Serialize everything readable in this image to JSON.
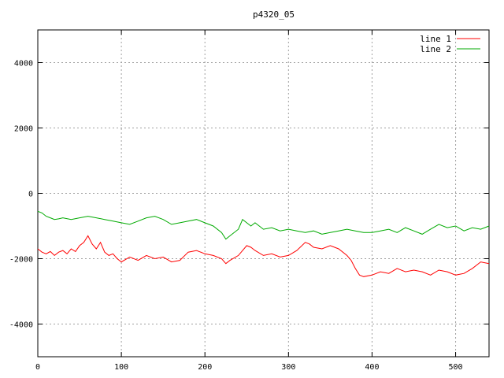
{
  "chart_data": {
    "type": "line",
    "title": "p4320_05",
    "xlabel": "",
    "ylabel": "",
    "xlim": [
      0,
      540
    ],
    "ylim": [
      -5000,
      5000
    ],
    "x_ticks": [
      0,
      100,
      200,
      300,
      400,
      500
    ],
    "y_ticks": [
      -4000,
      -2000,
      0,
      2000,
      4000
    ],
    "grid": true,
    "legend_position": "top-right",
    "series": [
      {
        "name": "line 1",
        "color": "#ff0000",
        "x": [
          0,
          5,
          10,
          15,
          20,
          25,
          30,
          35,
          40,
          45,
          50,
          55,
          60,
          65,
          70,
          75,
          80,
          85,
          90,
          95,
          100,
          110,
          120,
          130,
          140,
          150,
          160,
          170,
          180,
          190,
          200,
          210,
          220,
          225,
          230,
          240,
          250,
          255,
          260,
          270,
          280,
          290,
          300,
          310,
          320,
          325,
          330,
          340,
          350,
          360,
          370,
          375,
          380,
          385,
          390,
          400,
          410,
          420,
          430,
          440,
          450,
          460,
          470,
          480,
          490,
          500,
          510,
          520,
          530,
          540
        ],
        "y": [
          -1700,
          -1800,
          -1850,
          -1780,
          -1900,
          -1800,
          -1750,
          -1850,
          -1700,
          -1780,
          -1600,
          -1500,
          -1300,
          -1550,
          -1700,
          -1500,
          -1800,
          -1900,
          -1850,
          -2000,
          -2100,
          -1950,
          -2050,
          -1900,
          -2000,
          -1950,
          -2100,
          -2050,
          -1800,
          -1750,
          -1850,
          -1900,
          -2000,
          -2150,
          -2050,
          -1900,
          -1600,
          -1650,
          -1750,
          -1900,
          -1850,
          -1950,
          -1900,
          -1750,
          -1500,
          -1550,
          -1650,
          -1700,
          -1600,
          -1700,
          -1900,
          -2050,
          -2300,
          -2500,
          -2550,
          -2500,
          -2400,
          -2450,
          -2300,
          -2400,
          -2350,
          -2400,
          -2500,
          -2350,
          -2400,
          -2500,
          -2450,
          -2300,
          -2100,
          -2150
        ]
      },
      {
        "name": "line 2",
        "color": "#00aa00",
        "x": [
          0,
          5,
          10,
          15,
          20,
          25,
          30,
          40,
          50,
          60,
          70,
          80,
          90,
          100,
          110,
          120,
          130,
          140,
          150,
          160,
          170,
          180,
          190,
          200,
          210,
          220,
          225,
          230,
          240,
          245,
          250,
          255,
          260,
          270,
          280,
          290,
          300,
          310,
          320,
          330,
          340,
          350,
          360,
          370,
          380,
          390,
          400,
          410,
          420,
          430,
          440,
          450,
          460,
          470,
          480,
          490,
          500,
          510,
          520,
          530,
          540
        ],
        "y": [
          -550,
          -600,
          -700,
          -750,
          -800,
          -780,
          -750,
          -800,
          -750,
          -700,
          -750,
          -800,
          -850,
          -900,
          -950,
          -850,
          -750,
          -700,
          -800,
          -950,
          -900,
          -850,
          -800,
          -900,
          -1000,
          -1200,
          -1400,
          -1300,
          -1100,
          -800,
          -900,
          -1000,
          -900,
          -1100,
          -1050,
          -1150,
          -1100,
          -1150,
          -1200,
          -1150,
          -1250,
          -1200,
          -1150,
          -1100,
          -1150,
          -1200,
          -1200,
          -1150,
          -1100,
          -1200,
          -1050,
          -1150,
          -1250,
          -1100,
          -950,
          -1050,
          -1000,
          -1150,
          -1050,
          -1100,
          -1000
        ]
      }
    ]
  }
}
